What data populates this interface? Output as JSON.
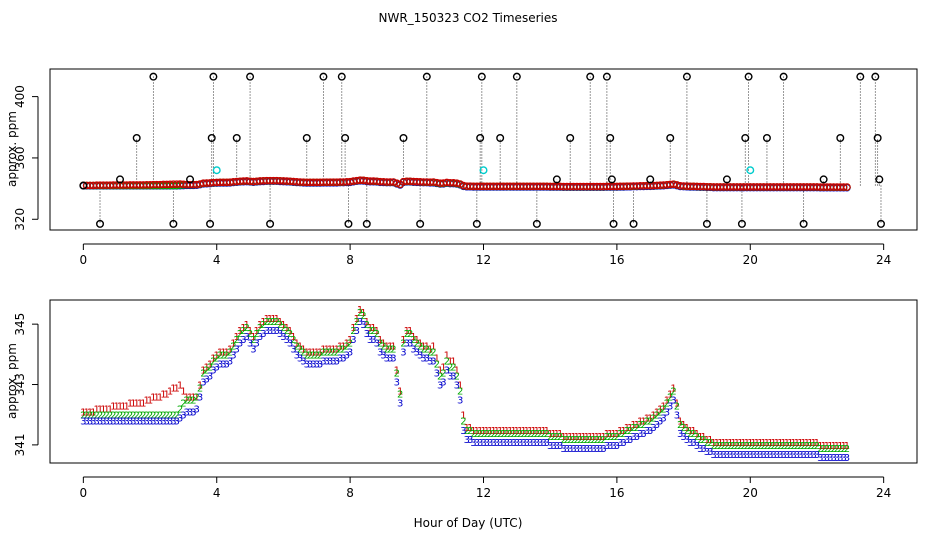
{
  "chart_data": [
    {
      "type": "scatter",
      "title": "NWR_150323  CO2 Timeseries",
      "xlabel": "",
      "ylabel": "approx. ppm",
      "xlim": [
        -1,
        25
      ],
      "ylim": [
        313,
        418
      ],
      "xticks": [
        0,
        4,
        8,
        12,
        16,
        20,
        24
      ],
      "yticks": [
        320,
        360,
        400
      ],
      "tick_labels_x": [
        "0",
        "4",
        "8",
        "12",
        "16",
        "20",
        "24"
      ],
      "tick_labels_y": [
        "320",
        "360",
        "400"
      ],
      "grid": false,
      "series": [
        {
          "color": "#000000",
          "marker": "circle-o",
          "points": [
            [
              0.0,
              342
            ],
            [
              0.5,
              317
            ],
            [
              1.1,
              346
            ],
            [
              1.6,
              373
            ],
            [
              2.1,
              413
            ],
            [
              2.7,
              317
            ],
            [
              3.2,
              346
            ],
            [
              3.8,
              317
            ],
            [
              3.85,
              373
            ],
            [
              3.9,
              413
            ],
            [
              4.6,
              373
            ],
            [
              5.0,
              413
            ],
            [
              5.6,
              317
            ],
            [
              6.7,
              373
            ],
            [
              7.2,
              413
            ],
            [
              7.75,
              413
            ],
            [
              7.85,
              373
            ],
            [
              7.95,
              317
            ],
            [
              8.5,
              317
            ],
            [
              9.6,
              373
            ],
            [
              10.1,
              317
            ],
            [
              10.3,
              413
            ],
            [
              11.8,
              317
            ],
            [
              11.9,
              373
            ],
            [
              11.95,
              413
            ],
            [
              12.5,
              373
            ],
            [
              13.0,
              413
            ],
            [
              13.6,
              317
            ],
            [
              14.2,
              346
            ],
            [
              14.6,
              373
            ],
            [
              15.2,
              413
            ],
            [
              15.7,
              413
            ],
            [
              15.8,
              373
            ],
            [
              15.85,
              346
            ],
            [
              15.9,
              317
            ],
            [
              16.5,
              317
            ],
            [
              17.0,
              346
            ],
            [
              17.6,
              373
            ],
            [
              18.1,
              413
            ],
            [
              18.7,
              317
            ],
            [
              19.3,
              346
            ],
            [
              19.75,
              317
            ],
            [
              19.85,
              373
            ],
            [
              19.95,
              413
            ],
            [
              20.5,
              373
            ],
            [
              21.0,
              413
            ],
            [
              21.6,
              317
            ],
            [
              22.2,
              346
            ],
            [
              22.7,
              373
            ],
            [
              23.3,
              413
            ],
            [
              23.75,
              413
            ],
            [
              23.82,
              373
            ],
            [
              23.87,
              346
            ],
            [
              23.92,
              317
            ]
          ]
        },
        {
          "color": "#00cccc",
          "marker": "circle-o",
          "points": [
            [
              4.0,
              352
            ],
            [
              12.0,
              352
            ],
            [
              20.0,
              352
            ]
          ]
        }
      ],
      "baseline_series": [
        {
          "color": "#0000cc",
          "values_from": "chart_data.1.series.2.values"
        },
        {
          "color": "#00aa00",
          "values_from": "chart_data.1.series.1.values"
        },
        {
          "color": "#cc0000",
          "values_from": "chart_data.1.series.0.values"
        }
      ]
    },
    {
      "type": "scatter",
      "title": "",
      "xlabel": "Hour of Day (UTC)",
      "ylabel": "approx. ppm",
      "xlim": [
        -1,
        25
      ],
      "ylim": [
        340.4,
        345.8
      ],
      "xticks": [
        0,
        4,
        8,
        12,
        16,
        20,
        24
      ],
      "yticks": [
        341,
        343,
        345
      ],
      "tick_labels_x": [
        "0",
        "4",
        "8",
        "12",
        "16",
        "20",
        "24"
      ],
      "tick_labels_y": [
        "341",
        "343",
        "345"
      ],
      "grid": false,
      "x": {
        "start": 0.0,
        "step": 0.1
      },
      "series": [
        {
          "name": "1",
          "color": "#cc0000",
          "marker": "1",
          "values": [
            342.1,
            342.1,
            342.1,
            342.1,
            342.2,
            342.2,
            342.2,
            342.2,
            342.2,
            342.3,
            342.3,
            342.3,
            342.3,
            342.3,
            342.4,
            342.4,
            342.4,
            342.4,
            342.4,
            342.5,
            342.5,
            342.6,
            342.6,
            342.6,
            342.7,
            342.7,
            342.8,
            342.9,
            342.9,
            343.0,
            342.8,
            342.6,
            342.6,
            342.6,
            342.6,
            343.0,
            343.5,
            343.6,
            343.7,
            343.9,
            344.0,
            344.1,
            344.1,
            344.1,
            344.2,
            344.4,
            344.6,
            344.8,
            344.9,
            345.0,
            344.8,
            344.6,
            344.8,
            345.0,
            345.1,
            345.2,
            345.2,
            345.2,
            345.2,
            345.1,
            345.0,
            344.9,
            344.8,
            344.6,
            344.4,
            344.3,
            344.2,
            344.1,
            344.1,
            344.1,
            344.1,
            344.1,
            344.2,
            344.2,
            344.2,
            344.2,
            344.2,
            344.3,
            344.3,
            344.4,
            344.5,
            344.9,
            345.2,
            345.5,
            345.4,
            345.1,
            344.9,
            344.9,
            344.8,
            344.5,
            344.4,
            344.3,
            344.3,
            344.3,
            343.5,
            342.8,
            344.5,
            344.8,
            344.8,
            344.6,
            344.5,
            344.4,
            344.3,
            344.3,
            344.2,
            344.3,
            343.9,
            343.5,
            343.6,
            344.0,
            343.8,
            343.8,
            343.5,
            343.0,
            342.0,
            341.6,
            341.6,
            341.5,
            341.5,
            341.5,
            341.5,
            341.5,
            341.5,
            341.5,
            341.5,
            341.5,
            341.5,
            341.5,
            341.5,
            341.5,
            341.5,
            341.5,
            341.5,
            341.5,
            341.5,
            341.5,
            341.5,
            341.5,
            341.5,
            341.5,
            341.4,
            341.4,
            341.4,
            341.4,
            341.3,
            341.3,
            341.3,
            341.3,
            341.3,
            341.3,
            341.3,
            341.3,
            341.3,
            341.3,
            341.3,
            341.3,
            341.3,
            341.4,
            341.4,
            341.4,
            341.4,
            341.5,
            341.5,
            341.6,
            341.6,
            341.7,
            341.7,
            341.8,
            341.8,
            341.9,
            341.9,
            342.0,
            342.1,
            342.2,
            342.3,
            342.5,
            342.7,
            342.9,
            342.4,
            341.8,
            341.7,
            341.6,
            341.5,
            341.5,
            341.4,
            341.3,
            341.3,
            341.2,
            341.2,
            341.1,
            341.1,
            341.1,
            341.1,
            341.1,
            341.1,
            341.1,
            341.1,
            341.1,
            341.1,
            341.1,
            341.1,
            341.1,
            341.1,
            341.1,
            341.1,
            341.1,
            341.1,
            341.1,
            341.1,
            341.1,
            341.1,
            341.1,
            341.1,
            341.1,
            341.1,
            341.1,
            341.1,
            341.1,
            341.1,
            341.1,
            341.1,
            341.0,
            341.0,
            341.0,
            341.0,
            341.0,
            341.0,
            341.0,
            341.0,
            341.0
          ]
        },
        {
          "name": "2",
          "color": "#00aa00",
          "marker": "2",
          "values": [
            342.0,
            342.0,
            342.0,
            342.0,
            342.0,
            342.0,
            342.0,
            342.0,
            342.0,
            342.0,
            342.0,
            342.0,
            342.0,
            342.0,
            342.0,
            342.0,
            342.0,
            342.0,
            342.0,
            342.0,
            342.0,
            342.0,
            342.0,
            342.0,
            342.0,
            342.0,
            342.0,
            342.0,
            342.0,
            342.2,
            342.4,
            342.5,
            342.5,
            342.5,
            342.6,
            342.9,
            343.4,
            343.5,
            343.6,
            343.8,
            343.9,
            344.0,
            344.0,
            344.0,
            344.1,
            344.3,
            344.5,
            344.7,
            344.8,
            344.9,
            344.7,
            344.5,
            344.7,
            344.9,
            345.0,
            345.1,
            345.1,
            345.1,
            345.1,
            345.0,
            344.9,
            344.8,
            344.7,
            344.5,
            344.3,
            344.2,
            344.1,
            344.0,
            344.0,
            344.0,
            344.0,
            344.0,
            344.1,
            344.1,
            344.1,
            344.1,
            344.1,
            344.2,
            344.2,
            344.3,
            344.4,
            344.8,
            345.1,
            345.4,
            345.3,
            345.0,
            344.8,
            344.8,
            344.7,
            344.4,
            344.3,
            344.2,
            344.2,
            344.2,
            343.4,
            342.7,
            344.4,
            344.7,
            344.7,
            344.5,
            344.4,
            344.3,
            344.2,
            344.2,
            344.1,
            344.1,
            343.7,
            343.3,
            343.4,
            343.8,
            343.6,
            343.6,
            343.3,
            342.8,
            341.8,
            341.5,
            341.5,
            341.4,
            341.4,
            341.4,
            341.4,
            341.4,
            341.4,
            341.4,
            341.4,
            341.4,
            341.4,
            341.4,
            341.4,
            341.4,
            341.4,
            341.4,
            341.4,
            341.4,
            341.4,
            341.4,
            341.4,
            341.4,
            341.4,
            341.4,
            341.3,
            341.3,
            341.3,
            341.3,
            341.2,
            341.2,
            341.2,
            341.2,
            341.2,
            341.2,
            341.2,
            341.2,
            341.2,
            341.2,
            341.2,
            341.2,
            341.2,
            341.3,
            341.3,
            341.3,
            341.3,
            341.4,
            341.4,
            341.5,
            341.5,
            341.6,
            341.6,
            341.7,
            341.7,
            341.8,
            341.8,
            341.9,
            342.0,
            342.1,
            342.2,
            342.4,
            342.6,
            342.8,
            342.3,
            341.7,
            341.6,
            341.5,
            341.4,
            341.4,
            341.3,
            341.2,
            341.2,
            341.1,
            341.1,
            341.0,
            341.0,
            341.0,
            341.0,
            341.0,
            341.0,
            341.0,
            341.0,
            341.0,
            341.0,
            341.0,
            341.0,
            341.0,
            341.0,
            341.0,
            341.0,
            341.0,
            341.0,
            341.0,
            341.0,
            341.0,
            341.0,
            341.0,
            341.0,
            341.0,
            341.0,
            341.0,
            341.0,
            341.0,
            341.0,
            341.0,
            341.0,
            340.9,
            340.9,
            340.9,
            340.9,
            340.9,
            340.9,
            340.9,
            340.9,
            340.9
          ]
        },
        {
          "name": "3",
          "color": "#0000cc",
          "marker": "3",
          "values": [
            341.8,
            341.8,
            341.8,
            341.8,
            341.8,
            341.8,
            341.8,
            341.8,
            341.8,
            341.8,
            341.8,
            341.8,
            341.8,
            341.8,
            341.8,
            341.8,
            341.8,
            341.8,
            341.8,
            341.8,
            341.8,
            341.8,
            341.8,
            341.8,
            341.8,
            341.8,
            341.8,
            341.8,
            341.8,
            341.9,
            342.0,
            342.1,
            342.1,
            342.1,
            342.2,
            342.6,
            343.1,
            343.2,
            343.3,
            343.5,
            343.6,
            343.7,
            343.7,
            343.7,
            343.8,
            344.0,
            344.2,
            344.4,
            344.5,
            344.6,
            344.4,
            344.2,
            344.4,
            344.6,
            344.7,
            344.8,
            344.8,
            344.8,
            344.8,
            344.7,
            344.6,
            344.5,
            344.4,
            344.2,
            344.0,
            343.9,
            343.8,
            343.7,
            343.7,
            343.7,
            343.7,
            343.7,
            343.8,
            343.8,
            343.8,
            343.8,
            343.8,
            343.9,
            343.9,
            344.0,
            344.1,
            344.5,
            344.8,
            345.1,
            345.0,
            344.7,
            344.5,
            344.5,
            344.4,
            344.1,
            344.0,
            343.9,
            343.9,
            343.9,
            343.1,
            342.4,
            344.1,
            344.4,
            344.4,
            344.2,
            344.1,
            344.0,
            343.9,
            343.9,
            343.8,
            343.8,
            343.4,
            343.0,
            343.1,
            343.5,
            343.3,
            343.3,
            343.0,
            342.5,
            341.5,
            341.2,
            341.2,
            341.1,
            341.1,
            341.1,
            341.1,
            341.1,
            341.1,
            341.1,
            341.1,
            341.1,
            341.1,
            341.1,
            341.1,
            341.1,
            341.1,
            341.1,
            341.1,
            341.1,
            341.1,
            341.1,
            341.1,
            341.1,
            341.1,
            341.1,
            341.0,
            341.0,
            341.0,
            341.0,
            340.9,
            340.9,
            340.9,
            340.9,
            340.9,
            340.9,
            340.9,
            340.9,
            340.9,
            340.9,
            340.9,
            340.9,
            340.9,
            341.0,
            341.0,
            341.0,
            341.0,
            341.1,
            341.1,
            341.2,
            341.2,
            341.3,
            341.3,
            341.4,
            341.4,
            341.5,
            341.5,
            341.6,
            341.7,
            341.8,
            341.9,
            342.1,
            342.3,
            342.5,
            342.0,
            341.4,
            341.3,
            341.2,
            341.1,
            341.1,
            341.0,
            340.9,
            340.9,
            340.8,
            340.8,
            340.7,
            340.7,
            340.7,
            340.7,
            340.7,
            340.7,
            340.7,
            340.7,
            340.7,
            340.7,
            340.7,
            340.7,
            340.7,
            340.7,
            340.7,
            340.7,
            340.7,
            340.7,
            340.7,
            340.7,
            340.7,
            340.7,
            340.7,
            340.7,
            340.7,
            340.7,
            340.7,
            340.7,
            340.7,
            340.7,
            340.7,
            340.7,
            340.6,
            340.6,
            340.6,
            340.6,
            340.6,
            340.6,
            340.6,
            340.6,
            340.6
          ]
        }
      ]
    }
  ]
}
